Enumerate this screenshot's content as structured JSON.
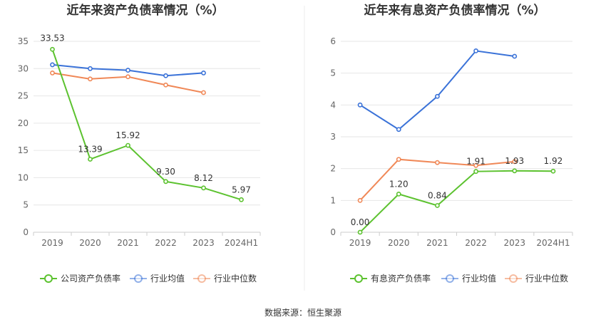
{
  "footer": {
    "source": "数据来源：恒生聚源"
  },
  "chart_data": [
    {
      "type": "line",
      "title": "近年来资产负债率情况（%）",
      "categories": [
        "2019",
        "2020",
        "2021",
        "2022",
        "2023",
        "2024H1"
      ],
      "ylim": [
        0,
        35
      ],
      "yticks": [
        0,
        5,
        10,
        15,
        20,
        25,
        30,
        35
      ],
      "grid": true,
      "legend_position": "bottom",
      "series": [
        {
          "name": "公司资产负债率",
          "color": "#5cc22f",
          "values": [
            33.53,
            13.39,
            15.92,
            9.3,
            8.12,
            5.97
          ],
          "labels": [
            "33.53",
            "13.39",
            "15.92",
            "9.30",
            "8.12",
            "5.97"
          ],
          "label_dy": [
            -12,
            -10,
            -10,
            -10,
            -10,
            -10
          ]
        },
        {
          "name": "行业均值",
          "color": "#3a72d8",
          "values": [
            30.7,
            30.0,
            29.7,
            28.7,
            29.2,
            null
          ]
        },
        {
          "name": "行业中位数",
          "color": "#f08857",
          "values": [
            29.2,
            28.1,
            28.5,
            27.0,
            25.6,
            null
          ]
        }
      ]
    },
    {
      "type": "line",
      "title": "近年来有息资产负债率情况（%）",
      "categories": [
        "2019",
        "2020",
        "2021",
        "2022",
        "2023",
        "2024H1"
      ],
      "ylim": [
        0,
        6
      ],
      "yticks": [
        0,
        1,
        2,
        3,
        4,
        5,
        6
      ],
      "grid": true,
      "legend_position": "bottom",
      "series": [
        {
          "name": "有息资产负债率",
          "color": "#5cc22f",
          "values": [
            0.0,
            1.2,
            0.84,
            1.91,
            1.93,
            1.92
          ],
          "labels": [
            "0.00",
            "1.20",
            "0.84",
            "1.91",
            "1.93",
            "1.92"
          ],
          "label_dy": [
            -10,
            -10,
            -10,
            -10,
            -10,
            -10
          ]
        },
        {
          "name": "行业均值",
          "color": "#3a72d8",
          "values": [
            4.0,
            3.23,
            4.27,
            5.7,
            5.53,
            null
          ]
        },
        {
          "name": "行业中位数",
          "color": "#f08857",
          "values": [
            1.0,
            2.29,
            2.19,
            2.1,
            2.22,
            null
          ]
        }
      ]
    }
  ]
}
